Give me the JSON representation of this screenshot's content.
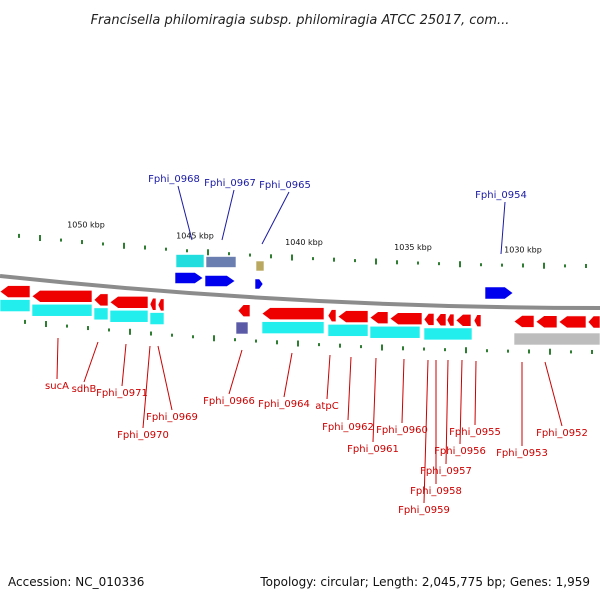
{
  "title": "Francisella philomiragia subsp. philomiragia ATCC 25017, com...",
  "footer": {
    "accession": "Accession: NC_010336",
    "summary": "Topology: circular; Length: 2,045,775 bp; Genes: 1,959"
  },
  "colors": {
    "backbone": "#8c8c8c",
    "forward_cds": "#0000ee",
    "reverse_cds": "#ee0000",
    "forward_feature": "#22dddd",
    "reverse_feature": "#22eeee",
    "gc_ticks": "#2e7d32",
    "forward_label": "#1a1aa6",
    "reverse_label": "#cc0000"
  },
  "kbp_labels": [
    "1050 kbp",
    "1045 kbp",
    "1040 kbp",
    "1035 kbp",
    "1030 kbp"
  ],
  "genes_top": [
    "Fphi_0968",
    "Fphi_0967",
    "Fphi_0965",
    "Fphi_0954"
  ],
  "genes_bottom": [
    "sucA",
    "sdhB",
    "Fphi_0971",
    "Fphi_0970",
    "Fphi_0969",
    "Fphi_0966",
    "Fphi_0964",
    "atpC",
    "Fphi_0962",
    "Fphi_0961",
    "Fphi_0960",
    "Fphi_0959",
    "Fphi_0958",
    "Fphi_0957",
    "Fphi_0956",
    "Fphi_0955",
    "Fphi_0953",
    "Fphi_0952"
  ]
}
